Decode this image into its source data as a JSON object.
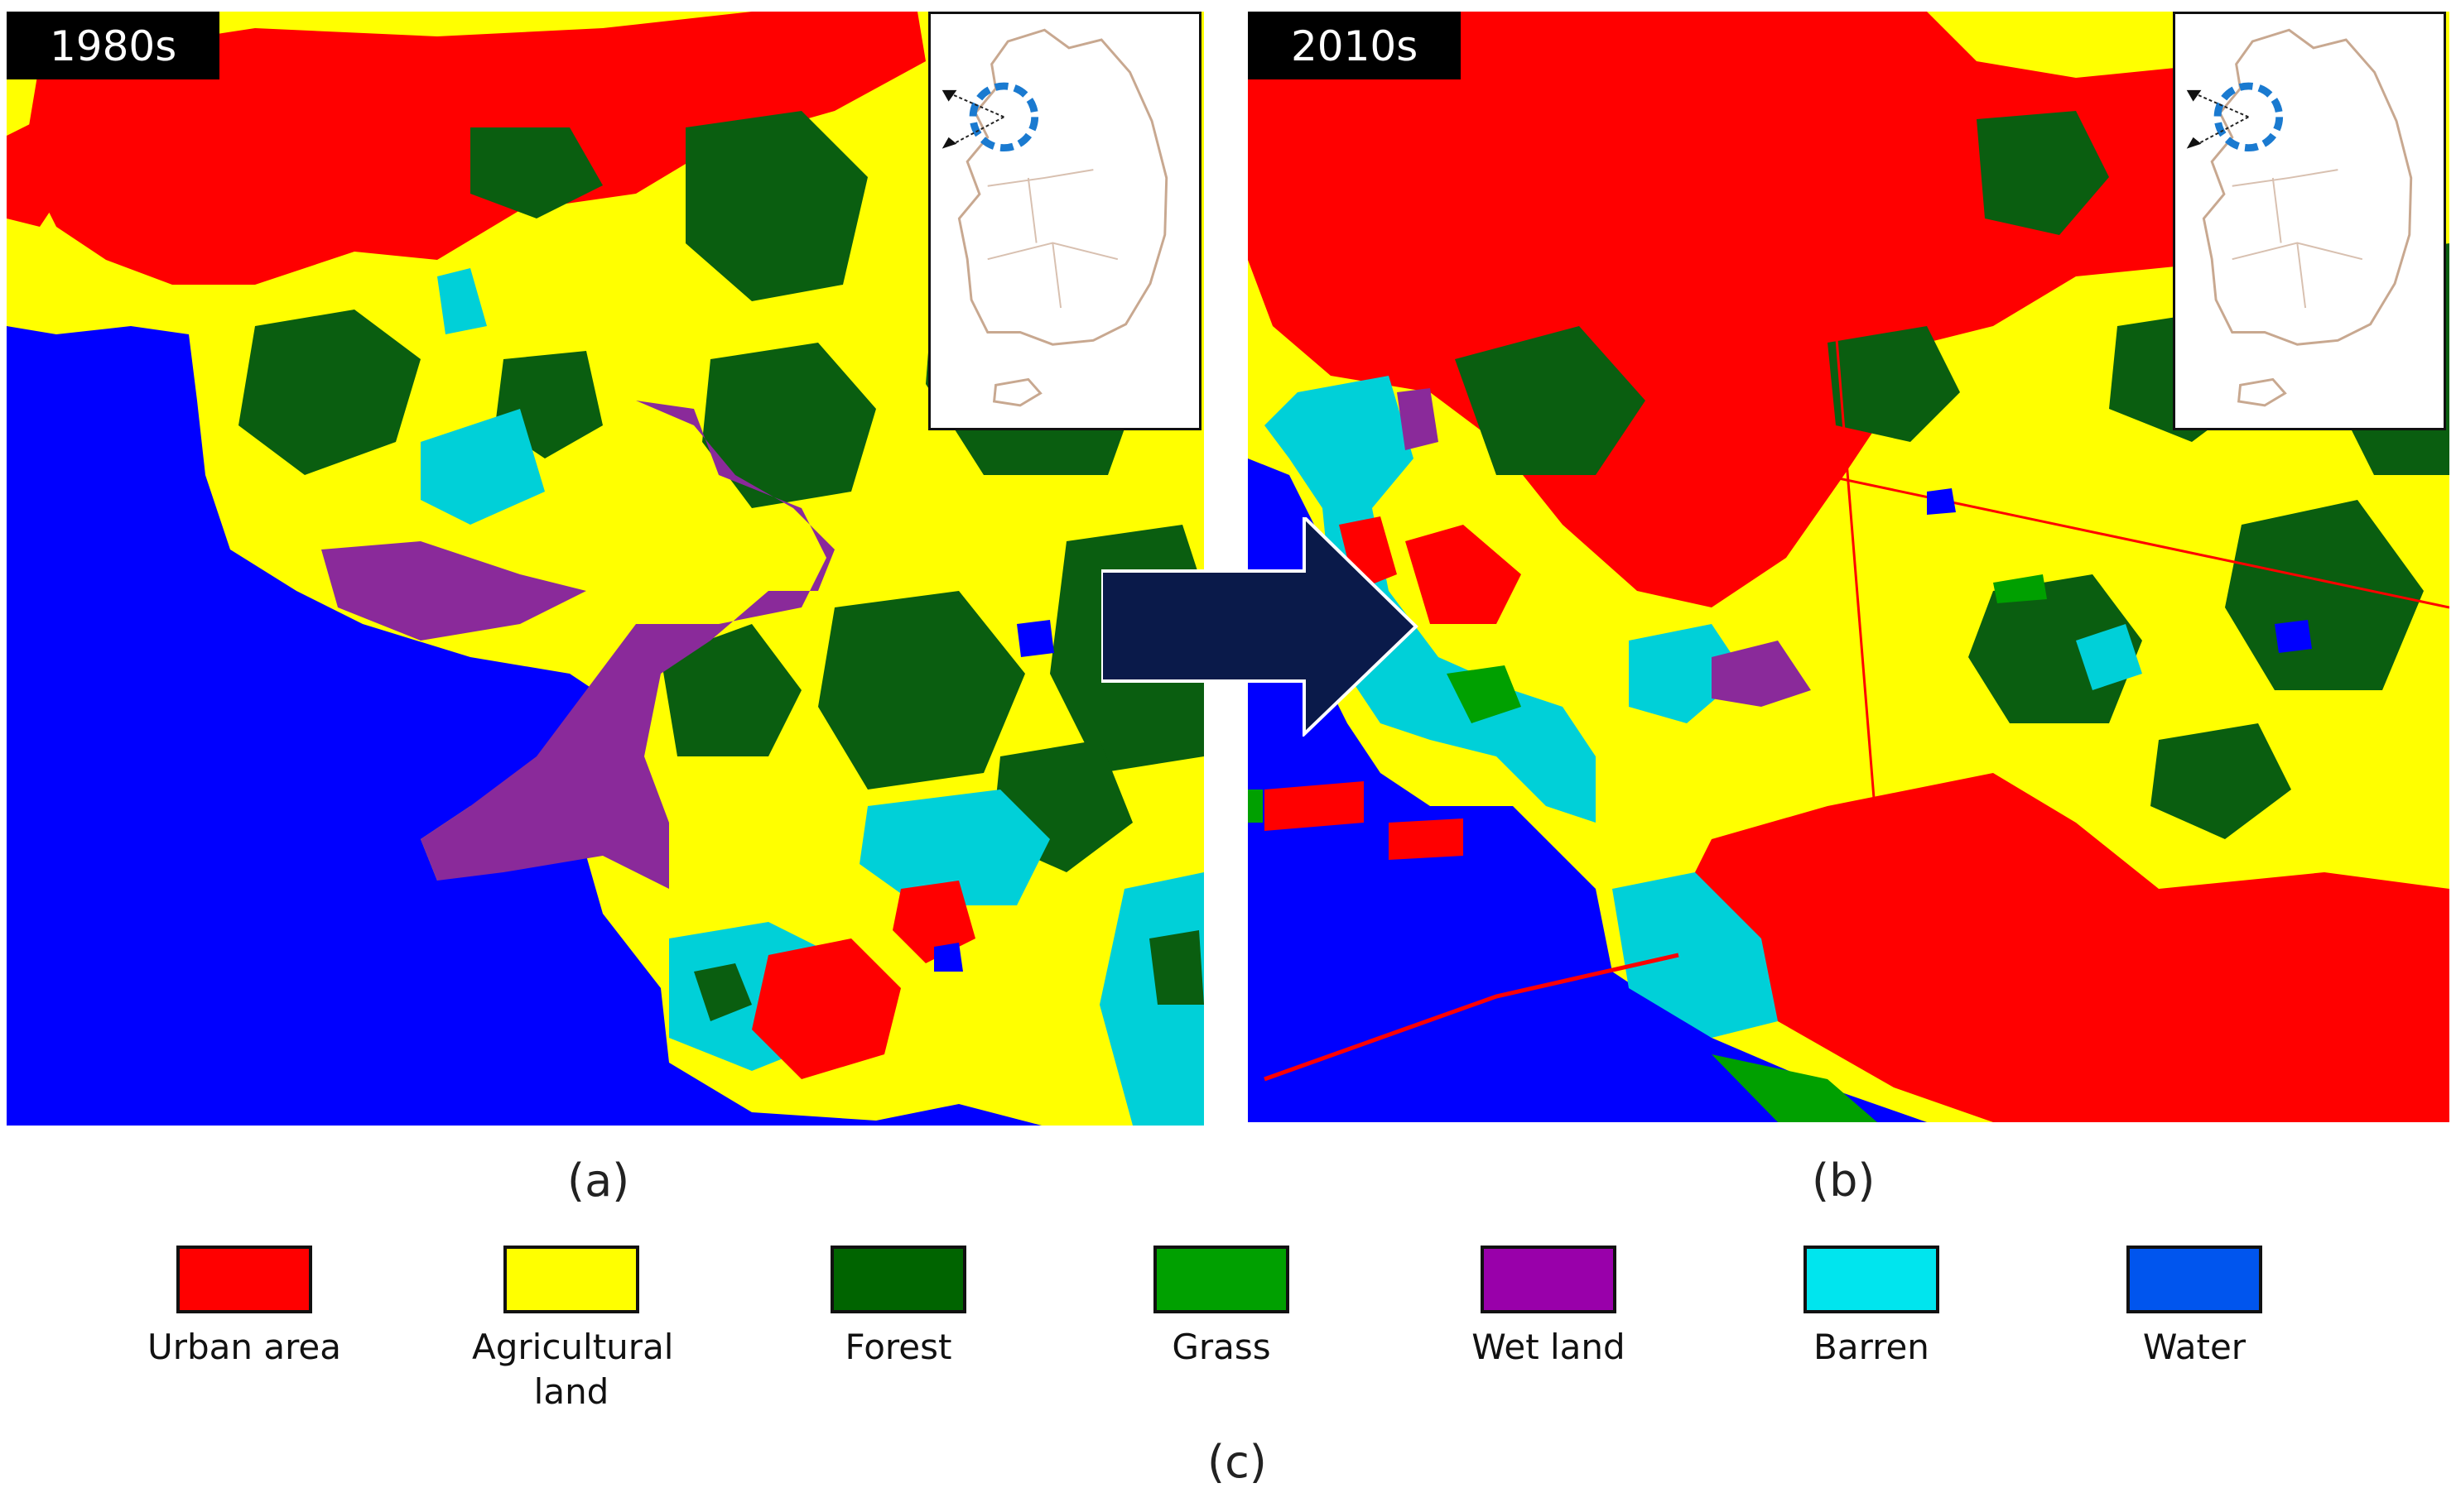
{
  "panels": [
    {
      "period": "1980s",
      "caption": "(a)"
    },
    {
      "period": "2010s",
      "caption": "(b)"
    }
  ],
  "figure_caption": "(c)",
  "legend": [
    {
      "label": "Urban area",
      "color": "#ff0000"
    },
    {
      "label": "Agricultural\nland",
      "color": "#ffff00"
    },
    {
      "label": "Forest",
      "color": "#006400"
    },
    {
      "label": "Grass",
      "color": "#00a000"
    },
    {
      "label": "Wet land",
      "color": "#9900aa"
    },
    {
      "label": "Barren",
      "color": "#00e5ee"
    },
    {
      "label": "Water",
      "color": "#0055ee"
    }
  ],
  "map_colors": {
    "urban": "#ff0000",
    "agricultural": "#ffff00",
    "forest": "#0a5e10",
    "grass": "#00a000",
    "wetland": "#8a2a9a",
    "barren": "#00d0d8",
    "water": "#0000ff"
  },
  "arrow_color": "#0a1a4a",
  "inset_marker_color": "#1a7ad0",
  "icons": [
    "korea-inset-map",
    "location-circle-icon",
    "transition-arrow-icon"
  ]
}
